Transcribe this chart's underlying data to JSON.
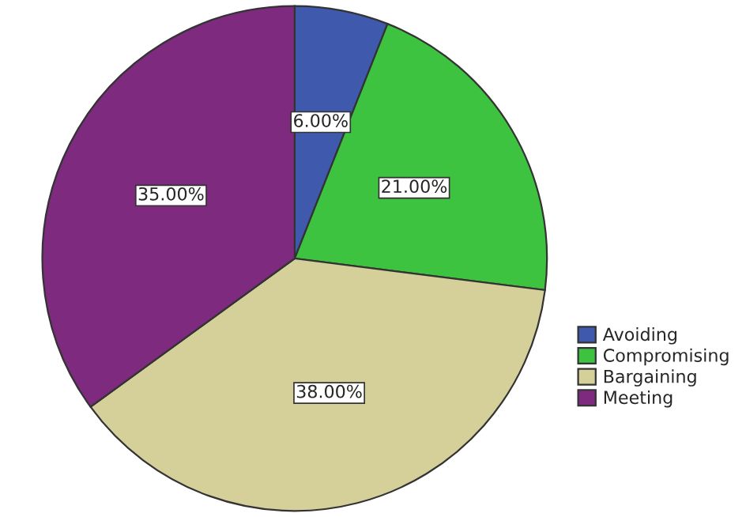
{
  "chart_data": {
    "type": "pie",
    "categories": [
      "Avoiding",
      "Compromising",
      "Bargaining",
      "Meeting"
    ],
    "values": [
      6.0,
      21.0,
      38.0,
      35.0
    ],
    "value_labels": [
      "6.00%",
      "21.00%",
      "38.00%",
      "35.00%"
    ],
    "colors": [
      "#3f59ad",
      "#3ec341",
      "#d5d09a",
      "#7e2a7f"
    ],
    "legend": "bottom right"
  }
}
